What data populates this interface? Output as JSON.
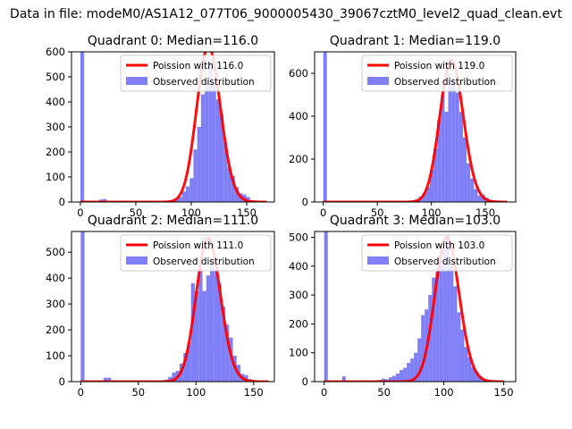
{
  "suptitle": "Data in file: modeM0/AS1A12_077T06_9000005430_39067cztM0_level2_quad_clean.evt",
  "colors": {
    "observed": "#7f7ff8",
    "poisson": "#ff0000"
  },
  "chart_data": [
    {
      "type": "bar",
      "title": "Quadrant 0: Median=116.0",
      "xlim": [
        -8,
        175
      ],
      "ylim": [
        0,
        600
      ],
      "xticks": [
        0,
        50,
        100,
        150
      ],
      "yticks": [
        0,
        100,
        200,
        300,
        400,
        500,
        600
      ],
      "legend": {
        "placement": "upper-right",
        "entries": [
          "Poission with 116.0",
          "Observed distribution"
        ]
      },
      "observed": {
        "name": "Observed distribution",
        "bin_edges": [
          0,
          3.4,
          6.8,
          10.2,
          13.6,
          17.0,
          20.4,
          23.8,
          27.2,
          30.6,
          34.0,
          37.4,
          40.8,
          44.2,
          47.6,
          51.0,
          54.4,
          57.8,
          61.2,
          64.6,
          68.0,
          71.4,
          74.8,
          78.2,
          81.6,
          85.0,
          88.4,
          91.8,
          95.2,
          98.6,
          102.0,
          105.4,
          108.8,
          112.2,
          115.6,
          119.0,
          122.4,
          125.8,
          129.2,
          132.6,
          136.0,
          139.4,
          142.8,
          146.2,
          149.6,
          153.0,
          156.4,
          159.8,
          163.2,
          166.6,
          170.0
        ],
        "counts": [
          600,
          0,
          0,
          0,
          0,
          10,
          12,
          0,
          0,
          0,
          0,
          0,
          0,
          0,
          0,
          0,
          0,
          0,
          0,
          0,
          0,
          2,
          3,
          5,
          8,
          12,
          20,
          42,
          62,
          95,
          210,
          300,
          430,
          480,
          560,
          480,
          410,
          350,
          240,
          140,
          105,
          60,
          35,
          30,
          20,
          8,
          5,
          3,
          2,
          1
        ]
      },
      "poisson": {
        "name": "Poission with 116.0",
        "lambda": 116.0,
        "peak": 620,
        "x_range": [
          0,
          168
        ]
      }
    },
    {
      "type": "bar",
      "title": "Quadrant 1: Median=119.0",
      "xlim": [
        -8,
        178
      ],
      "ylim": [
        0,
        700
      ],
      "xticks": [
        0,
        50,
        100,
        150
      ],
      "yticks": [
        0,
        200,
        400,
        600
      ],
      "legend": {
        "placement": "upper-right",
        "entries": [
          "Poission with 119.0",
          "Observed distribution"
        ]
      },
      "observed": {
        "name": "Observed distribution",
        "bin_edges": [
          0,
          3.4,
          6.8,
          10.2,
          13.6,
          17.0,
          20.4,
          23.8,
          27.2,
          30.6,
          34.0,
          37.4,
          40.8,
          44.2,
          47.6,
          51.0,
          54.4,
          57.8,
          61.2,
          64.6,
          68.0,
          71.4,
          74.8,
          78.2,
          81.6,
          85.0,
          88.4,
          91.8,
          95.2,
          98.6,
          102.0,
          105.4,
          108.8,
          112.2,
          115.6,
          119.0,
          122.4,
          125.8,
          129.2,
          132.6,
          136.0,
          139.4,
          142.8,
          146.2,
          149.6,
          153.0,
          156.4,
          159.8,
          163.2,
          166.6,
          170.0
        ],
        "counts": [
          700,
          0,
          0,
          0,
          0,
          0,
          0,
          0,
          0,
          0,
          0,
          0,
          0,
          0,
          0,
          0,
          0,
          0,
          0,
          0,
          0,
          0,
          2,
          4,
          8,
          12,
          25,
          40,
          70,
          150,
          250,
          380,
          500,
          420,
          600,
          560,
          510,
          420,
          300,
          180,
          110,
          60,
          30,
          35,
          20,
          8,
          5,
          3,
          2,
          1
        ]
      },
      "poisson": {
        "name": "Poission with 119.0",
        "lambda": 119.0,
        "peak": 660,
        "x_range": [
          0,
          170
        ]
      }
    },
    {
      "type": "bar",
      "title": "Quadrant 2: Median=111.0",
      "xlim": [
        -8,
        168
      ],
      "ylim": [
        0,
        580
      ],
      "xticks": [
        0,
        50,
        100,
        150
      ],
      "yticks": [
        0,
        100,
        200,
        300,
        400,
        500
      ],
      "legend": {
        "placement": "upper-right",
        "entries": [
          "Poission with 111.0",
          "Observed distribution"
        ]
      },
      "observed": {
        "name": "Observed distribution",
        "bin_edges": [
          0,
          3.3,
          6.6,
          9.9,
          13.2,
          16.5,
          19.8,
          23.1,
          26.4,
          29.7,
          33.0,
          36.3,
          39.6,
          42.9,
          46.2,
          49.5,
          52.8,
          56.1,
          59.4,
          62.7,
          66.0,
          69.3,
          72.6,
          75.9,
          79.2,
          82.5,
          85.8,
          89.1,
          92.4,
          95.7,
          99.0,
          102.3,
          105.6,
          108.9,
          112.2,
          115.5,
          118.8,
          122.1,
          125.4,
          128.7,
          132.0,
          135.3,
          138.6,
          141.9,
          145.2,
          148.5,
          151.8,
          155.1,
          158.4,
          161.7,
          165.0
        ],
        "counts": [
          580,
          0,
          0,
          0,
          0,
          0,
          15,
          15,
          0,
          0,
          0,
          0,
          0,
          0,
          0,
          0,
          0,
          0,
          0,
          0,
          0,
          2,
          8,
          18,
          35,
          42,
          70,
          110,
          150,
          380,
          350,
          440,
          350,
          410,
          470,
          430,
          380,
          290,
          220,
          170,
          100,
          65,
          30,
          25,
          10,
          5,
          3,
          2,
          1,
          0
        ]
      },
      "poisson": {
        "name": "Poission with 111.0",
        "lambda": 111.0,
        "peak": 555,
        "x_range": [
          0,
          163
        ]
      }
    },
    {
      "type": "bar",
      "title": "Quadrant 3: Median=103.0",
      "xlim": [
        -8,
        160
      ],
      "ylim": [
        0,
        520
      ],
      "xticks": [
        0,
        50,
        100,
        150
      ],
      "yticks": [
        0,
        100,
        200,
        300,
        400,
        500
      ],
      "legend": {
        "placement": "upper-right",
        "entries": [
          "Poission with 103.0",
          "Observed distribution"
        ]
      },
      "observed": {
        "name": "Observed distribution",
        "bin_edges": [
          0,
          3.0,
          6.0,
          9.0,
          12.0,
          15.0,
          18.0,
          21.0,
          24.0,
          27.0,
          30.0,
          33.0,
          36.0,
          39.0,
          42.0,
          45.0,
          48.0,
          51.0,
          54.0,
          57.0,
          60.0,
          63.0,
          66.0,
          69.0,
          72.0,
          75.0,
          78.0,
          81.0,
          84.0,
          87.0,
          90.0,
          93.0,
          96.0,
          99.0,
          102.0,
          105.0,
          108.0,
          111.0,
          114.0,
          117.0,
          120.0,
          123.0,
          126.0,
          129.0,
          132.0,
          135.0,
          138.0,
          141.0,
          144.0,
          147.0,
          150.0
        ],
        "counts": [
          520,
          0,
          0,
          0,
          0,
          18,
          0,
          0,
          0,
          0,
          0,
          0,
          0,
          0,
          4,
          6,
          10,
          8,
          15,
          20,
          28,
          40,
          48,
          65,
          80,
          100,
          150,
          230,
          250,
          300,
          360,
          380,
          420,
          460,
          500,
          400,
          330,
          240,
          180,
          120,
          85,
          50,
          35,
          20,
          10,
          5,
          2,
          1,
          0,
          0
        ]
      },
      "poisson": {
        "name": "Poission with 103.0",
        "lambda": 103.0,
        "peak": 500,
        "x_range": [
          0,
          150
        ]
      }
    }
  ]
}
